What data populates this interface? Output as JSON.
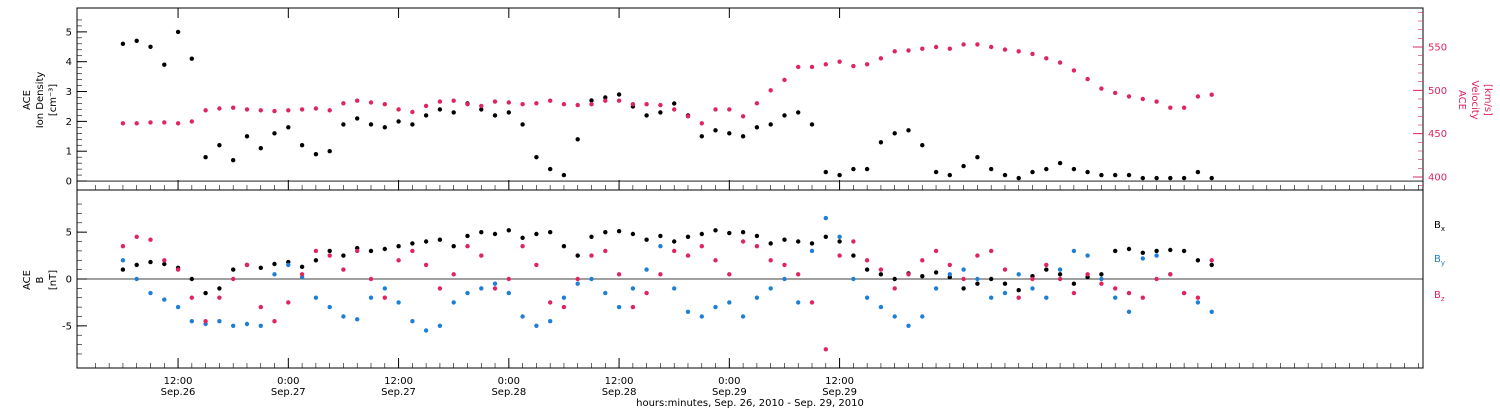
{
  "colors": {
    "black": "#000000",
    "pink": "#e0245e",
    "blue": "#1e7fd6"
  },
  "chart_data": [
    {
      "type": "scatter",
      "panel": "top",
      "ylabel": {
        "line1": "ACE",
        "line2": "Ion Density",
        "line3": "[cm⁻³]"
      },
      "ylabel_right": {
        "line1": "ACE",
        "line2": "Velocity",
        "line3": "[km/s]"
      },
      "ylim": [
        -0.3,
        5.8
      ],
      "ylim_right": [
        385,
        595
      ],
      "yticks": [
        "0",
        "1",
        "2",
        "3",
        "4",
        "5"
      ],
      "yticks_right": [
        "400",
        "450",
        "500",
        "550"
      ],
      "x": [
        0,
        3,
        6,
        9,
        12,
        15,
        18,
        21,
        24,
        27,
        30,
        33,
        36,
        39,
        42,
        45,
        48,
        51,
        54,
        57,
        60,
        63,
        66,
        69,
        72,
        75,
        78,
        81,
        84,
        87,
        90,
        93,
        96,
        99,
        102,
        105,
        108,
        111,
        114,
        117,
        120,
        123,
        126,
        129,
        132,
        135,
        138,
        141,
        144,
        147,
        150,
        153,
        156,
        159,
        162,
        165,
        168,
        171,
        174,
        177,
        180,
        183,
        186,
        189,
        192,
        195,
        198,
        201,
        204,
        207,
        210,
        213,
        216,
        219,
        222,
        225,
        228,
        231,
        234,
        237
      ],
      "series": [
        {
          "color": "black",
          "values": [
            4.6,
            4.7,
            4.5,
            3.9,
            5.0,
            4.1,
            0.8,
            1.2,
            0.7,
            1.5,
            1.1,
            1.6,
            1.8,
            1.2,
            0.9,
            1.0,
            1.9,
            2.1,
            1.9,
            1.8,
            2.0,
            1.9,
            2.2,
            2.4,
            2.3,
            2.6,
            2.4,
            2.2,
            2.3,
            1.9,
            0.8,
            0.4,
            0.2,
            1.4,
            2.7,
            2.8,
            2.9,
            2.5,
            2.2,
            2.3,
            2.6,
            2.2,
            1.5,
            1.7,
            1.6,
            1.5,
            1.8,
            1.9,
            2.2,
            2.3,
            1.9,
            0.3,
            0.2,
            0.4,
            0.4,
            1.3,
            1.6,
            1.7,
            1.2,
            0.3,
            0.2,
            0.5,
            0.8,
            0.4,
            0.2,
            0.1,
            0.3,
            0.4,
            0.6,
            0.4,
            0.3,
            0.2,
            0.2,
            0.2,
            0.1,
            0.1,
            0.1,
            0.1,
            0.3,
            0.1
          ]
        },
        {
          "color": "pink",
          "axis": "right",
          "values": [
            462,
            462,
            463,
            463,
            462,
            464,
            477,
            479,
            480,
            478,
            477,
            476,
            477,
            478,
            479,
            477,
            485,
            488,
            486,
            484,
            478,
            475,
            482,
            487,
            488,
            484,
            482,
            487,
            486,
            484,
            485,
            488,
            484,
            483,
            484,
            488,
            488,
            484,
            484,
            483,
            478,
            470,
            462,
            478,
            478,
            470,
            485,
            500,
            512,
            527,
            527,
            530,
            533,
            528,
            530,
            537,
            545,
            546,
            548,
            550,
            548,
            553,
            553,
            550,
            547,
            545,
            542,
            537,
            532,
            523,
            513,
            502,
            497,
            493,
            490,
            487,
            480,
            480,
            493,
            495
          ]
        }
      ]
    },
    {
      "type": "scatter",
      "panel": "bottom",
      "ylabel": {
        "line1": "ACE",
        "line2": "B",
        "line3": "[nT]"
      },
      "ylim": [
        -9.5,
        9.5
      ],
      "yticks": [
        "-5",
        "0",
        "5"
      ],
      "legend": [
        "Bx",
        "By",
        "Bz"
      ],
      "x": [
        0,
        3,
        6,
        9,
        12,
        15,
        18,
        21,
        24,
        27,
        30,
        33,
        36,
        39,
        42,
        45,
        48,
        51,
        54,
        57,
        60,
        63,
        66,
        69,
        72,
        75,
        78,
        81,
        84,
        87,
        90,
        93,
        96,
        99,
        102,
        105,
        108,
        111,
        114,
        117,
        120,
        123,
        126,
        129,
        132,
        135,
        138,
        141,
        144,
        147,
        150,
        153,
        156,
        159,
        162,
        165,
        168,
        171,
        174,
        177,
        180,
        183,
        186,
        189,
        192,
        195,
        198,
        201,
        204,
        207,
        210,
        213,
        216,
        219,
        222,
        225,
        228,
        231,
        234,
        237
      ],
      "series": [
        {
          "name": "Bx",
          "color": "black",
          "values": [
            1.0,
            1.5,
            1.8,
            1.6,
            1.2,
            0.0,
            -1.5,
            -1.0,
            1.0,
            1.5,
            1.2,
            1.6,
            1.8,
            1.3,
            2.0,
            3.0,
            2.5,
            3.3,
            3.0,
            3.2,
            3.5,
            3.8,
            4.0,
            4.2,
            3.5,
            4.6,
            5.0,
            4.8,
            5.2,
            4.4,
            4.8,
            5.0,
            3.5,
            2.5,
            4.5,
            5.0,
            5.1,
            4.8,
            4.2,
            4.6,
            4.0,
            4.5,
            4.8,
            5.2,
            4.9,
            5.0,
            4.6,
            3.8,
            4.2,
            4.0,
            3.8,
            4.5,
            4.0,
            2.5,
            1.0,
            0.5,
            0.0,
            0.6,
            0.3,
            0.7,
            0.2,
            -1.0,
            -0.5,
            0.0,
            -0.5,
            -1.2,
            0.3,
            1.0,
            0.5,
            -0.5,
            0.2,
            0.5,
            3.0,
            3.2,
            2.8,
            3.0,
            3.1,
            3.0,
            2.0,
            1.5
          ]
        },
        {
          "name": "By",
          "color": "blue",
          "values": [
            2.0,
            0.0,
            -1.5,
            -2.2,
            -3.0,
            -4.5,
            -4.8,
            -4.5,
            -5.0,
            -4.8,
            -5.0,
            0.5,
            1.5,
            0.2,
            -2.0,
            -3.0,
            -4.0,
            -4.3,
            -2.0,
            -1.0,
            -2.5,
            -4.5,
            -5.5,
            -5.0,
            -2.5,
            -1.5,
            -1.0,
            -0.5,
            -1.5,
            -4.0,
            -5.0,
            -4.5,
            -2.0,
            -0.5,
            0.0,
            -1.5,
            -3.0,
            -1.0,
            1.0,
            3.5,
            -1.0,
            -3.5,
            -4.0,
            -3.0,
            -2.5,
            -4.0,
            -2.0,
            -1.0,
            0.0,
            -2.5,
            3.0,
            6.5,
            4.5,
            0.0,
            -2.0,
            -3.0,
            -4.0,
            -5.0,
            -4.0,
            -1.0,
            0.5,
            1.0,
            0.0,
            -2.0,
            -1.5,
            0.5,
            -1.0,
            -2.0,
            1.0,
            3.0,
            2.5,
            0.0,
            -2.0,
            -3.5,
            2.2,
            2.5,
            0.5,
            -1.5,
            -2.5,
            -3.5
          ]
        },
        {
          "name": "Bz",
          "color": "pink",
          "values": [
            3.5,
            4.5,
            4.2,
            2.0,
            1.0,
            -2.0,
            -4.5,
            -2.0,
            0.0,
            1.5,
            -3.0,
            -4.5,
            -2.5,
            0.5,
            3.0,
            2.5,
            1.0,
            3.0,
            0.0,
            -2.0,
            2.0,
            3.0,
            1.5,
            -1.0,
            0.5,
            3.5,
            2.5,
            -1.0,
            0.0,
            3.5,
            1.5,
            -2.5,
            -3.0,
            0.0,
            2.5,
            3.0,
            0.5,
            -3.0,
            -1.5,
            0.5,
            3.0,
            2.5,
            3.5,
            2.0,
            0.5,
            4.0,
            3.5,
            2.0,
            1.5,
            0.5,
            -2.5,
            -7.5,
            2.5,
            4.0,
            2.0,
            1.0,
            -1.0,
            0.5,
            2.0,
            3.0,
            1.5,
            0.0,
            2.5,
            3.0,
            1.0,
            -2.0,
            0.0,
            1.5,
            0.0,
            -1.5,
            0.5,
            -0.5,
            -1.0,
            -1.5,
            -2.0,
            0.0,
            0.5,
            -1.5,
            -2.0,
            2.0
          ]
        }
      ]
    }
  ],
  "x_axis": {
    "title": "hours:minutes, Sep. 26, 2010 - Sep. 29, 2010",
    "xlim": [
      -10,
      283
    ],
    "ticks": [
      {
        "x": 12,
        "time": "12:00",
        "date": "Sep.26"
      },
      {
        "x": 36,
        "time": "0:00",
        "date": "Sep.27"
      },
      {
        "x": 60,
        "time": "12:00",
        "date": "Sep.27"
      },
      {
        "x": 84,
        "time": "0:00",
        "date": "Sep.28"
      },
      {
        "x": 108,
        "time": "12:00",
        "date": "Sep.28"
      },
      {
        "x": 132,
        "time": "0:00",
        "date": "Sep.29"
      },
      {
        "x": 156,
        "time": "12:00",
        "date": "Sep.29"
      }
    ]
  }
}
